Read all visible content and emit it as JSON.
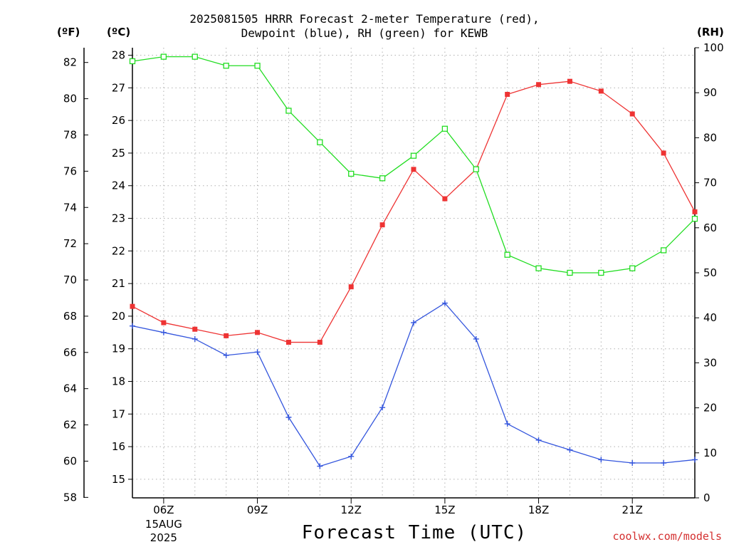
{
  "chart_data": {
    "type": "line",
    "title": "2025081505 HRRR Forecast 2-meter Temperature (red),",
    "subtitle": "Dewpoint (blue), RH (green) for KEWB",
    "xlabel": "Forecast Time (UTC)",
    "left_unit_f": "(ºF)",
    "left_unit_c": "(ºC)",
    "right_unit": "(RH)",
    "credit": "coolwx.com/models",
    "grid": true,
    "x_hours": [
      5,
      6,
      7,
      8,
      9,
      10,
      11,
      12,
      13,
      14,
      15,
      16,
      17,
      18,
      19,
      20,
      21,
      22,
      23
    ],
    "x_range": [
      5,
      23
    ],
    "x_ticks": [
      {
        "hour": 6,
        "label": "06Z",
        "sub1": "15AUG",
        "sub2": "2025"
      },
      {
        "hour": 9,
        "label": "09Z"
      },
      {
        "hour": 12,
        "label": "12Z"
      },
      {
        "hour": 15,
        "label": "15Z"
      },
      {
        "hour": 18,
        "label": "18Z"
      },
      {
        "hour": 21,
        "label": "21Z"
      }
    ],
    "celsius_ticks": [
      "15",
      "16",
      "17",
      "18",
      "19",
      "20",
      "21",
      "22",
      "23",
      "24",
      "25",
      "26",
      "27",
      "28"
    ],
    "fahrenheit_ticks": [
      "58",
      "60",
      "62",
      "64",
      "66",
      "68",
      "70",
      "72",
      "74",
      "76",
      "78",
      "80",
      "82"
    ],
    "rh_ticks": [
      "0",
      "10",
      "20",
      "30",
      "40",
      "50",
      "60",
      "70",
      "80",
      "90",
      "100"
    ],
    "celsius_range": [
      14.43,
      28.23
    ],
    "rh_range": [
      0,
      100
    ],
    "series": [
      {
        "name": "Temperature",
        "axis": "celsius",
        "color": "#ee3333",
        "marker": "filled-square",
        "values": [
          20.3,
          19.8,
          19.6,
          19.4,
          19.5,
          19.2,
          19.2,
          20.9,
          22.8,
          24.5,
          23.6,
          24.5,
          26.8,
          27.1,
          27.2,
          26.9,
          26.2,
          25.0,
          23.2
        ]
      },
      {
        "name": "Dewpoint",
        "axis": "celsius",
        "color": "#3355dd",
        "marker": "plus",
        "values": [
          19.7,
          19.5,
          19.3,
          18.8,
          18.9,
          16.9,
          15.4,
          15.7,
          17.2,
          19.8,
          20.4,
          19.3,
          16.7,
          16.2,
          15.9,
          15.6,
          15.5,
          15.5,
          15.6
        ]
      },
      {
        "name": "RH",
        "axis": "rh",
        "color": "#22dd22",
        "marker": "open-square",
        "values": [
          97,
          98,
          98,
          96,
          96,
          86,
          79,
          72,
          71,
          76,
          82,
          73,
          54,
          51,
          50,
          50,
          51,
          55,
          62
        ]
      }
    ]
  }
}
